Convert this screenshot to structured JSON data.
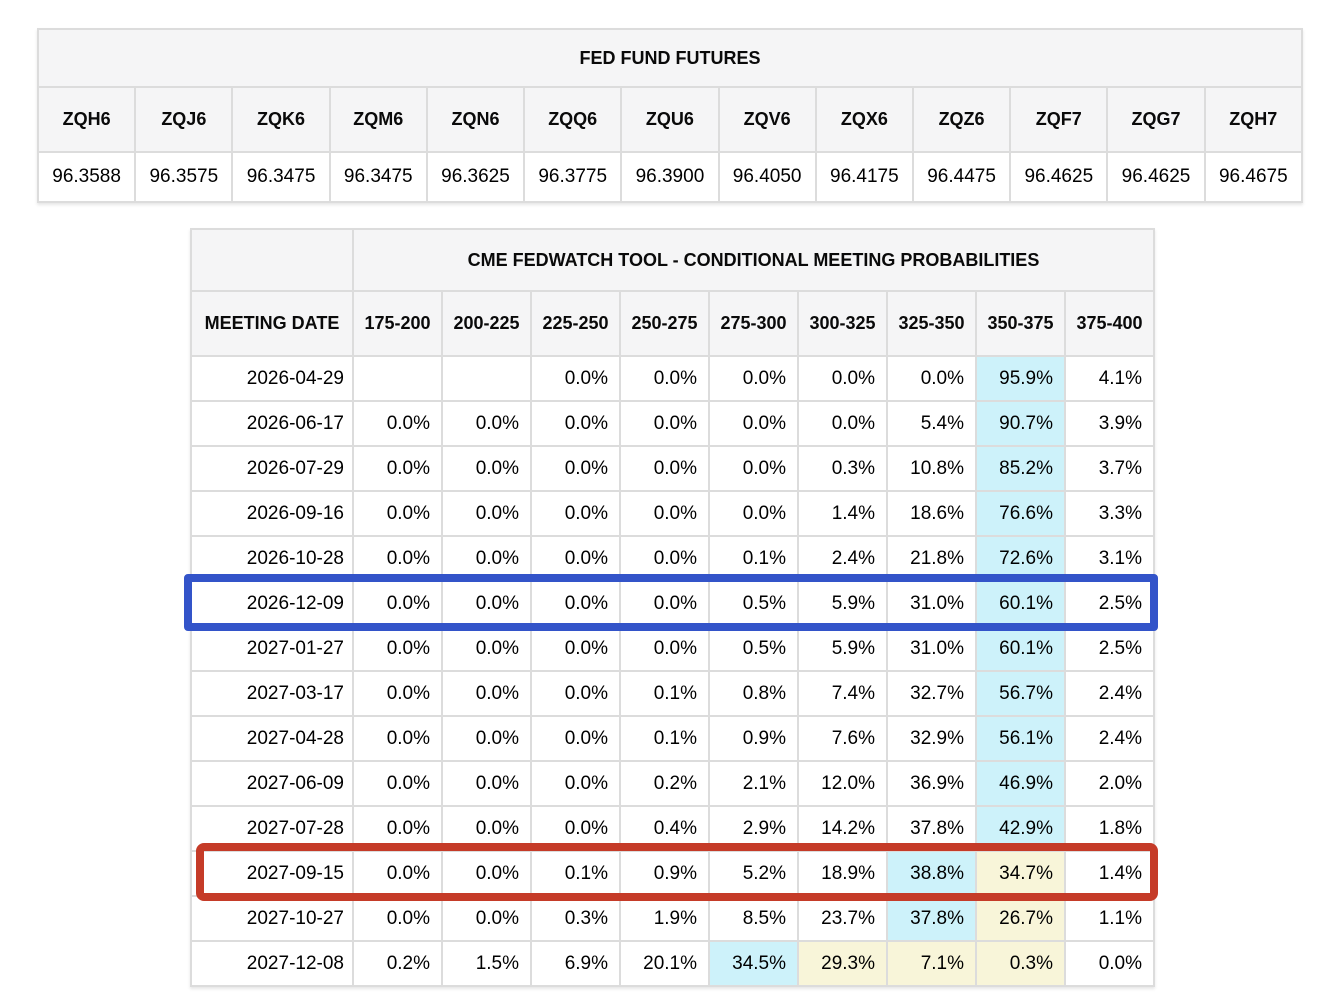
{
  "fed_fund_futures": {
    "title": "FED FUND FUTURES",
    "contracts": [
      "ZQH6",
      "ZQJ6",
      "ZQK6",
      "ZQM6",
      "ZQN6",
      "ZQQ6",
      "ZQU6",
      "ZQV6",
      "ZQX6",
      "ZQZ6",
      "ZQF7",
      "ZQG7",
      "ZQH7"
    ],
    "prices": [
      "96.3588",
      "96.3575",
      "96.3475",
      "96.3475",
      "96.3625",
      "96.3775",
      "96.3900",
      "96.4050",
      "96.4175",
      "96.4475",
      "96.4625",
      "96.4625",
      "96.4675"
    ]
  },
  "fedwatch": {
    "title": "CME FEDWATCH TOOL - CONDITIONAL MEETING PROBABILITIES",
    "meeting_date_label": "MEETING DATE",
    "range_headers": [
      "175-200",
      "200-225",
      "225-250",
      "250-275",
      "275-300",
      "300-325",
      "325-350",
      "350-375",
      "375-400"
    ],
    "rows": [
      {
        "date": "2026-04-29",
        "values": [
          "",
          "",
          "0.0%",
          "0.0%",
          "0.0%",
          "0.0%",
          "0.0%",
          "95.9%",
          "4.1%"
        ],
        "highlights": [
          null,
          null,
          null,
          null,
          null,
          null,
          null,
          "cyan",
          null
        ],
        "box": null
      },
      {
        "date": "2026-06-17",
        "values": [
          "0.0%",
          "0.0%",
          "0.0%",
          "0.0%",
          "0.0%",
          "0.0%",
          "5.4%",
          "90.7%",
          "3.9%"
        ],
        "highlights": [
          null,
          null,
          null,
          null,
          null,
          null,
          null,
          "cyan",
          null
        ],
        "box": null
      },
      {
        "date": "2026-07-29",
        "values": [
          "0.0%",
          "0.0%",
          "0.0%",
          "0.0%",
          "0.0%",
          "0.3%",
          "10.8%",
          "85.2%",
          "3.7%"
        ],
        "highlights": [
          null,
          null,
          null,
          null,
          null,
          null,
          null,
          "cyan",
          null
        ],
        "box": null
      },
      {
        "date": "2026-09-16",
        "values": [
          "0.0%",
          "0.0%",
          "0.0%",
          "0.0%",
          "0.0%",
          "1.4%",
          "18.6%",
          "76.6%",
          "3.3%"
        ],
        "highlights": [
          null,
          null,
          null,
          null,
          null,
          null,
          null,
          "cyan",
          null
        ],
        "box": null
      },
      {
        "date": "2026-10-28",
        "values": [
          "0.0%",
          "0.0%",
          "0.0%",
          "0.0%",
          "0.1%",
          "2.4%",
          "21.8%",
          "72.6%",
          "3.1%"
        ],
        "highlights": [
          null,
          null,
          null,
          null,
          null,
          null,
          null,
          "cyan",
          null
        ],
        "box": null
      },
      {
        "date": "2026-12-09",
        "values": [
          "0.0%",
          "0.0%",
          "0.0%",
          "0.0%",
          "0.5%",
          "5.9%",
          "31.0%",
          "60.1%",
          "2.5%"
        ],
        "highlights": [
          null,
          null,
          null,
          null,
          null,
          null,
          null,
          "cyan",
          null
        ],
        "box": "blue"
      },
      {
        "date": "2027-01-27",
        "values": [
          "0.0%",
          "0.0%",
          "0.0%",
          "0.0%",
          "0.5%",
          "5.9%",
          "31.0%",
          "60.1%",
          "2.5%"
        ],
        "highlights": [
          null,
          null,
          null,
          null,
          null,
          null,
          null,
          "cyan",
          null
        ],
        "box": null
      },
      {
        "date": "2027-03-17",
        "values": [
          "0.0%",
          "0.0%",
          "0.0%",
          "0.1%",
          "0.8%",
          "7.4%",
          "32.7%",
          "56.7%",
          "2.4%"
        ],
        "highlights": [
          null,
          null,
          null,
          null,
          null,
          null,
          null,
          "cyan",
          null
        ],
        "box": null
      },
      {
        "date": "2027-04-28",
        "values": [
          "0.0%",
          "0.0%",
          "0.0%",
          "0.1%",
          "0.9%",
          "7.6%",
          "32.9%",
          "56.1%",
          "2.4%"
        ],
        "highlights": [
          null,
          null,
          null,
          null,
          null,
          null,
          null,
          "cyan",
          null
        ],
        "box": null
      },
      {
        "date": "2027-06-09",
        "values": [
          "0.0%",
          "0.0%",
          "0.0%",
          "0.2%",
          "2.1%",
          "12.0%",
          "36.9%",
          "46.9%",
          "2.0%"
        ],
        "highlights": [
          null,
          null,
          null,
          null,
          null,
          null,
          null,
          "cyan",
          null
        ],
        "box": null
      },
      {
        "date": "2027-07-28",
        "values": [
          "0.0%",
          "0.0%",
          "0.0%",
          "0.4%",
          "2.9%",
          "14.2%",
          "37.8%",
          "42.9%",
          "1.8%"
        ],
        "highlights": [
          null,
          null,
          null,
          null,
          null,
          null,
          null,
          "cyan",
          null
        ],
        "box": null
      },
      {
        "date": "2027-09-15",
        "values": [
          "0.0%",
          "0.0%",
          "0.1%",
          "0.9%",
          "5.2%",
          "18.9%",
          "38.8%",
          "34.7%",
          "1.4%"
        ],
        "highlights": [
          null,
          null,
          null,
          null,
          null,
          null,
          "cyan",
          "yellow",
          null
        ],
        "box": "red"
      },
      {
        "date": "2027-10-27",
        "values": [
          "0.0%",
          "0.0%",
          "0.3%",
          "1.9%",
          "8.5%",
          "23.7%",
          "37.8%",
          "26.7%",
          "1.1%"
        ],
        "highlights": [
          null,
          null,
          null,
          null,
          null,
          null,
          "cyan",
          "yellow",
          null
        ],
        "box": null
      },
      {
        "date": "2027-12-08",
        "values": [
          "0.2%",
          "1.5%",
          "6.9%",
          "20.1%",
          "34.5%",
          "29.3%",
          "7.1%",
          "0.3%",
          "0.0%"
        ],
        "highlights": [
          null,
          null,
          null,
          null,
          "cyan",
          "yellow",
          "yellow",
          "yellow",
          null
        ],
        "box": null
      }
    ],
    "colors": {
      "cyan_highlight": "#cdf2fa",
      "yellow_highlight": "#f8f5d9",
      "blue_box": "#3354c9",
      "red_box": "#c53b28"
    }
  }
}
